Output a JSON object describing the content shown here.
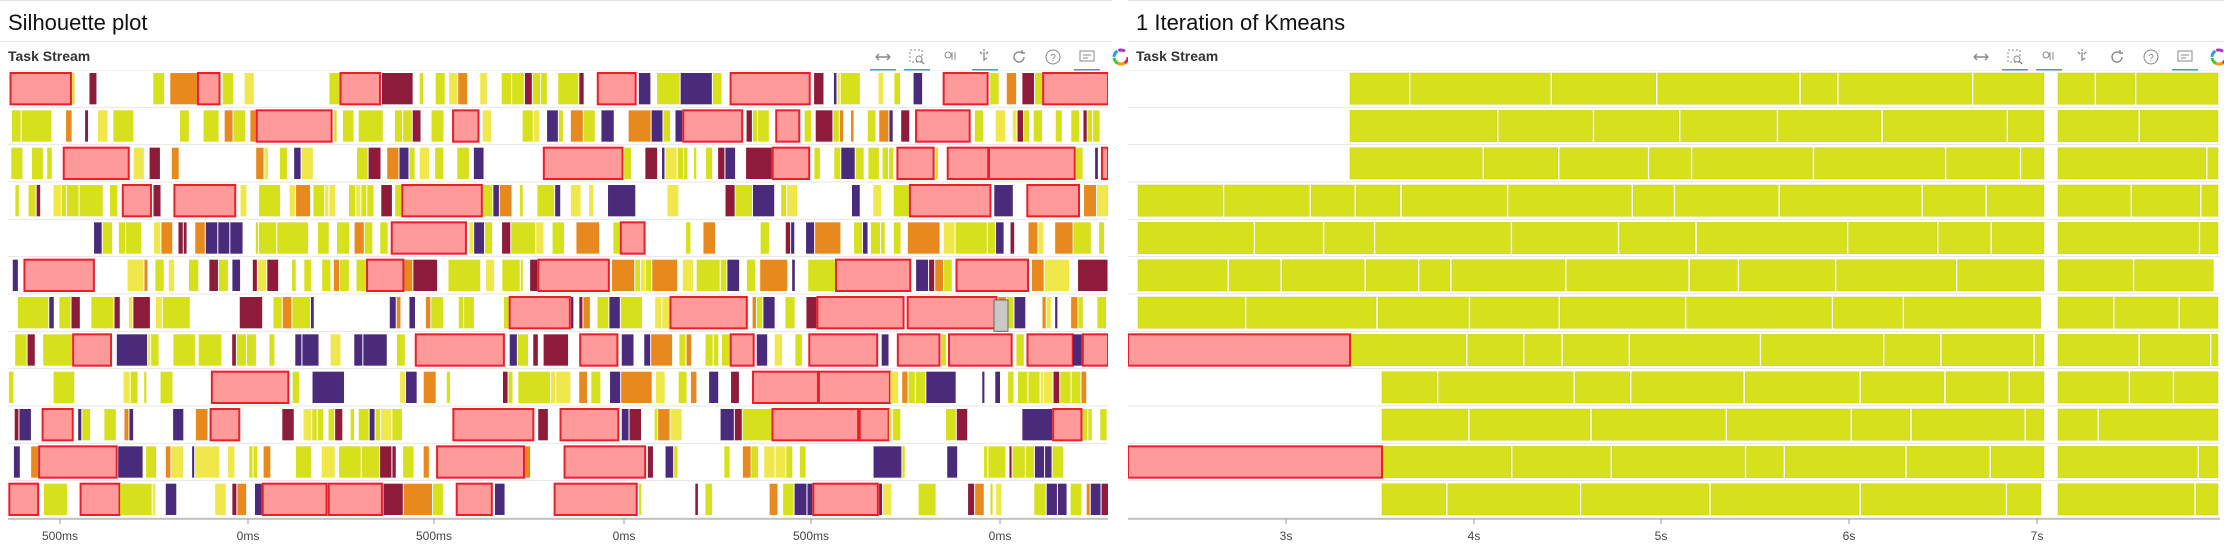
{
  "panels": [
    {
      "id": "left",
      "page_title": "Silhouette plot",
      "plot_title": "Task Stream",
      "x_ticks": [
        "500ms",
        "0ms",
        "500ms",
        "0ms",
        "500ms",
        "0ms"
      ],
      "lanes": 12
    },
    {
      "id": "right",
      "page_title": "1 Iteration of Kmeans",
      "plot_title": "Task Stream",
      "x_ticks": [
        "3s",
        "4s",
        "5s",
        "6s",
        "7s"
      ],
      "lanes": 12
    }
  ],
  "toolbar": {
    "tools": [
      "xpan-tool-icon",
      "box-zoom-icon",
      "wheel-zoom-icon",
      "tap-icon",
      "reset-icon",
      "help-icon",
      "hover-icon",
      "bokeh-logo-icon"
    ]
  },
  "colors": {
    "task_yellow": "#d6e01b",
    "task_light_yellow": "#f0e84a",
    "transfer_pink": "#ff9a9a",
    "transfer_red": "#e8202a",
    "purple": "#4a2a7a",
    "dark_red": "#8e1b3a",
    "orange": "#e8891e",
    "gray": "#c8c8c8",
    "grid": "#e6e6e6"
  }
}
